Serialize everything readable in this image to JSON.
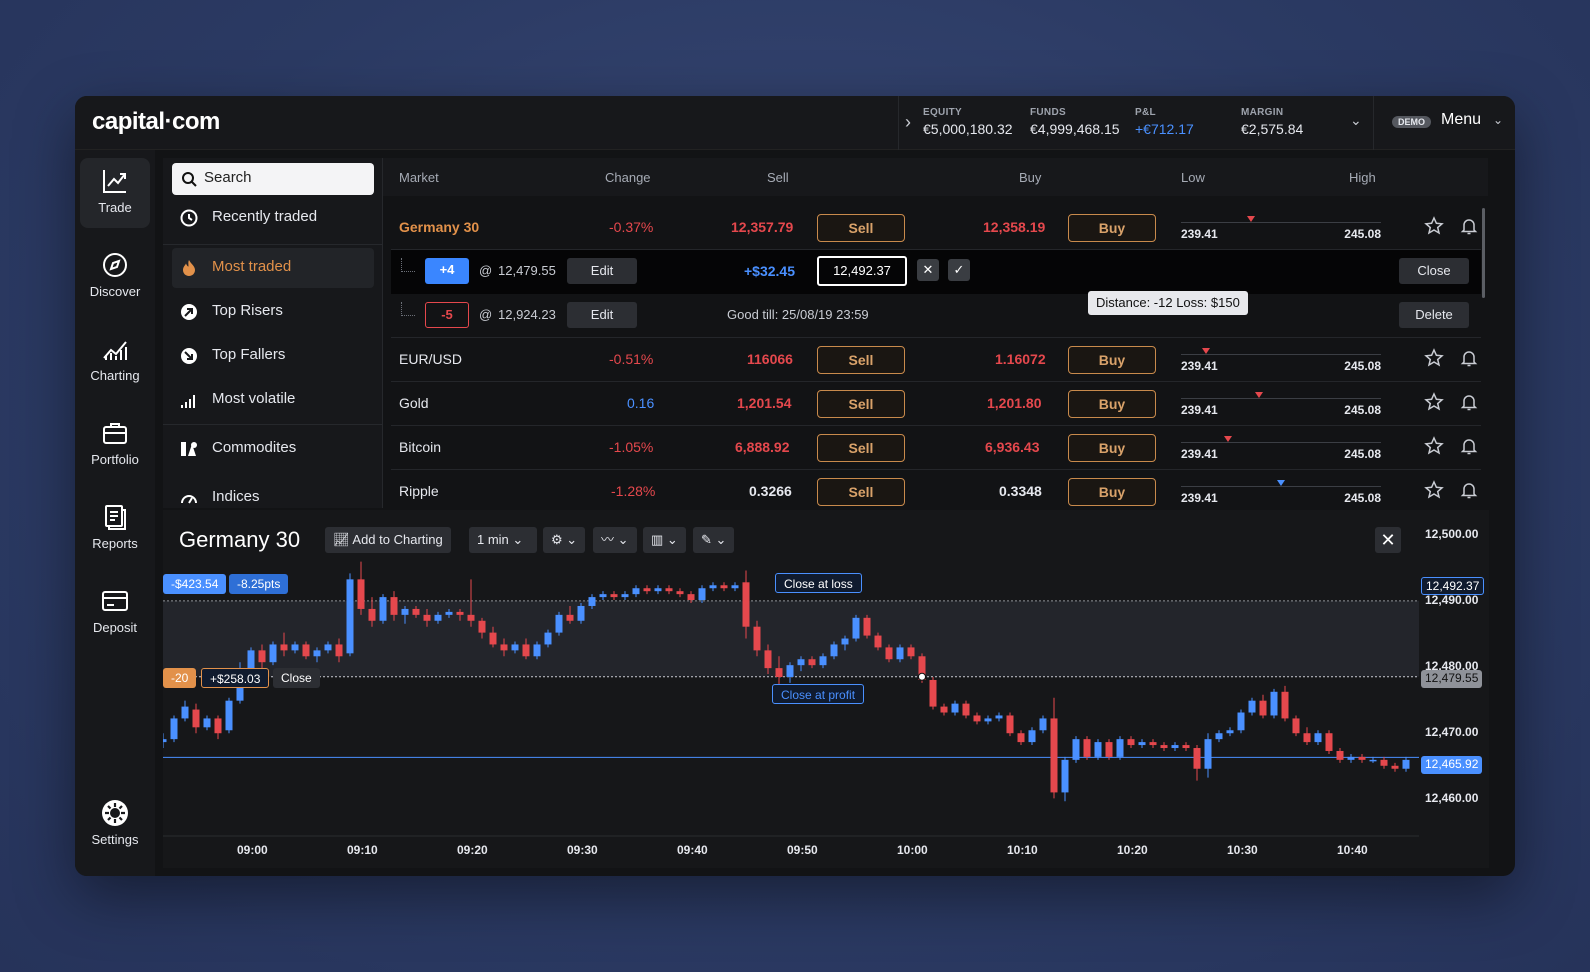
{
  "brand": {
    "logo": "capital·com"
  },
  "account": {
    "equity_label": "EQUITY",
    "equity": "€5,000,180.32",
    "funds_label": "FUNDS",
    "funds": "€4,999,468.15",
    "pnl_label": "P&L",
    "pnl": "+€712.17",
    "margin_label": "MARGIN",
    "margin": "€2,575.84",
    "demo": "DEMO",
    "menu": "Menu"
  },
  "rail": {
    "trade": "Trade",
    "discover": "Discover",
    "charting": "Charting",
    "portfolio": "Portfolio",
    "reports": "Reports",
    "deposit": "Deposit",
    "settings": "Settings"
  },
  "sidebar": {
    "search_placeholder": "Search",
    "recently": "Recently traded",
    "most_traded": "Most traded",
    "risers": "Top Risers",
    "fallers": "Top Fallers",
    "volatile": "Most volatile",
    "commodities": "Commodites",
    "indices": "Indices"
  },
  "table": {
    "headers": {
      "market": "Market",
      "change": "Change",
      "sell": "Sell",
      "buy": "Buy",
      "low": "Low",
      "high": "High"
    },
    "rows": [
      {
        "name": "Germany 30",
        "change": "-0.37%",
        "sell": "12,357.79",
        "buy": "12,358.19",
        "low": "239.41",
        "high": "245.08",
        "sell_btn": "Sell",
        "buy_btn": "Buy"
      },
      {
        "name": "EUR/USD",
        "change": "-0.51%",
        "sell": "116066",
        "buy": "1.16072",
        "low": "239.41",
        "high": "245.08",
        "sell_btn": "Sell",
        "buy_btn": "Buy"
      },
      {
        "name": "Gold",
        "change": "0.16",
        "sell": "1,201.54",
        "buy": "1,201.80",
        "low": "239.41",
        "high": "245.08",
        "sell_btn": "Sell",
        "buy_btn": "Buy"
      },
      {
        "name": "Bitcoin",
        "change": "-1.05%",
        "sell": "6,888.92",
        "buy": "6,936.43",
        "low": "239.41",
        "high": "245.08",
        "sell_btn": "Sell",
        "buy_btn": "Buy"
      },
      {
        "name": "Ripple",
        "change": "-1.28%",
        "sell": "0.3266",
        "buy": "0.3348",
        "low": "239.41",
        "high": "245.08",
        "sell_btn": "Sell",
        "buy_btn": "Buy"
      }
    ],
    "position1": {
      "qty": "+4",
      "at": "@",
      "price": "12,479.55",
      "edit": "Edit",
      "pnl": "+$32.45",
      "stop_value": "12,492.37",
      "cancel": "✕",
      "confirm": "✓",
      "close": "Close"
    },
    "position2": {
      "qty": "-5",
      "at": "@",
      "price": "12,924.23",
      "edit": "Edit",
      "good_till": "Good till: 25/08/19 23:59",
      "delete": "Delete"
    },
    "tooltip": "Distance: -12   Loss: $150"
  },
  "chart": {
    "title": "Germany 30",
    "add_to_charting": "Add to Charting",
    "interval": "1 min",
    "close_icon": "✕",
    "y_labels": [
      "12,500.00",
      "12,490.00",
      "12,480.00",
      "12,470.00",
      "12,460.00"
    ],
    "x_labels": [
      "09:00",
      "09:10",
      "09:20",
      "09:30",
      "09:40",
      "09:50",
      "10:00",
      "10:10",
      "10:20",
      "10:30",
      "10:40"
    ],
    "price_tags": {
      "stop": "12,492.37",
      "entry": "12,479.55",
      "current": "12,465.92"
    },
    "stop_line": {
      "amount": "-$423.54",
      "pts": "-8.25pts",
      "label": "Close at loss"
    },
    "entry_line": {
      "qty": "-20",
      "pnl": "+$258.03",
      "close": "Close",
      "profit_label": "Close at profit"
    }
  },
  "colors": {
    "up": "#4a90ff",
    "down": "#e5484d",
    "accent": "#e2914a"
  },
  "chart_data": {
    "type": "candlestick",
    "title": "Germany 30",
    "x_ticks": [
      "09:00",
      "09:10",
      "09:20",
      "09:30",
      "09:40",
      "09:50",
      "10:00",
      "10:10",
      "10:20",
      "10:30",
      "10:40"
    ],
    "ylim": [
      12455,
      12504
    ],
    "candles": [
      [
        "08:55",
        12468.5,
        12470.0,
        12467.5,
        12469.0
      ],
      [
        "08:56",
        12469.0,
        12473.0,
        12468.5,
        12472.5
      ],
      [
        "08:57",
        12472.5,
        12475.5,
        12472.0,
        12474.5
      ],
      [
        "08:58",
        12474.0,
        12475.0,
        12470.0,
        12471.0
      ],
      [
        "08:59",
        12471.0,
        12473.0,
        12470.5,
        12472.5
      ],
      [
        "09:00",
        12472.5,
        12473.0,
        12469.0,
        12470.0
      ],
      [
        "09:01",
        12470.5,
        12476.0,
        12470.0,
        12475.5
      ],
      [
        "09:02",
        12475.5,
        12482.0,
        12475.0,
        12481.0
      ],
      [
        "09:03",
        12481.0,
        12484.5,
        12480.0,
        12484.0
      ],
      [
        "09:04",
        12484.0,
        12485.0,
        12481.0,
        12482.0
      ],
      [
        "09:05",
        12482.0,
        12485.5,
        12481.5,
        12485.0
      ],
      [
        "09:06",
        12485.0,
        12487.0,
        12483.0,
        12484.0
      ],
      [
        "09:07",
        12484.0,
        12485.5,
        12483.5,
        12485.0
      ],
      [
        "09:08",
        12485.0,
        12485.5,
        12482.5,
        12483.0
      ],
      [
        "09:09",
        12483.0,
        12484.5,
        12482.0,
        12484.0
      ],
      [
        "09:10",
        12484.0,
        12485.5,
        12483.5,
        12485.0
      ],
      [
        "09:11",
        12485.0,
        12486.0,
        12482.0,
        12483.0
      ],
      [
        "09:12",
        12483.5,
        12497.0,
        12483.0,
        12496.0
      ],
      [
        "09:13",
        12496.0,
        12499.0,
        12490.0,
        12491.0
      ],
      [
        "09:14",
        12491.0,
        12493.0,
        12488.0,
        12489.0
      ],
      [
        "09:15",
        12489.0,
        12493.5,
        12488.5,
        12493.0
      ],
      [
        "09:16",
        12493.0,
        12494.0,
        12489.0,
        12490.0
      ],
      [
        "09:17",
        12490.0,
        12491.5,
        12488.5,
        12491.0
      ],
      [
        "09:18",
        12491.0,
        12491.5,
        12489.5,
        12490.0
      ],
      [
        "09:19",
        12490.0,
        12491.0,
        12488.0,
        12489.0
      ],
      [
        "09:20",
        12489.0,
        12490.5,
        12488.5,
        12490.0
      ],
      [
        "09:21",
        12490.0,
        12491.0,
        12489.5,
        12490.5
      ],
      [
        "09:22",
        12490.5,
        12491.0,
        12489.0,
        12490.0
      ],
      [
        "09:23",
        12490.0,
        12496.0,
        12488.0,
        12489.0
      ],
      [
        "09:24",
        12489.0,
        12489.5,
        12486.0,
        12487.0
      ],
      [
        "09:25",
        12487.0,
        12488.0,
        12484.5,
        12485.0
      ],
      [
        "09:26",
        12485.0,
        12486.0,
        12483.0,
        12484.0
      ],
      [
        "09:27",
        12484.0,
        12485.5,
        12483.5,
        12485.0
      ],
      [
        "09:28",
        12485.0,
        12486.0,
        12482.5,
        12483.0
      ],
      [
        "09:29",
        12483.0,
        12485.5,
        12482.5,
        12485.0
      ],
      [
        "09:30",
        12485.0,
        12487.5,
        12484.5,
        12487.0
      ],
      [
        "09:31",
        12487.0,
        12490.5,
        12486.5,
        12490.0
      ],
      [
        "09:32",
        12490.0,
        12491.5,
        12488.5,
        12489.0
      ],
      [
        "09:33",
        12489.0,
        12492.0,
        12488.5,
        12491.5
      ],
      [
        "09:34",
        12491.5,
        12493.5,
        12491.0,
        12493.0
      ],
      [
        "09:35",
        12493.0,
        12494.0,
        12492.5,
        12493.5
      ],
      [
        "09:36",
        12493.5,
        12494.0,
        12492.5,
        12493.0
      ],
      [
        "09:37",
        12493.0,
        12494.0,
        12492.5,
        12493.5
      ],
      [
        "09:38",
        12493.5,
        12495.0,
        12493.0,
        12494.5
      ],
      [
        "09:39",
        12494.5,
        12495.0,
        12493.5,
        12494.0
      ],
      [
        "09:40",
        12494.0,
        12495.0,
        12493.5,
        12494.5
      ],
      [
        "09:41",
        12494.5,
        12495.0,
        12493.5,
        12494.0
      ],
      [
        "09:42",
        12494.0,
        12494.5,
        12493.0,
        12493.5
      ],
      [
        "09:43",
        12493.5,
        12494.0,
        12492.0,
        12492.5
      ],
      [
        "09:44",
        12492.5,
        12495.0,
        12492.0,
        12494.5
      ],
      [
        "09:45",
        12494.5,
        12495.5,
        12494.0,
        12495.0
      ],
      [
        "09:46",
        12495.0,
        12495.5,
        12494.0,
        12494.5
      ],
      [
        "09:47",
        12494.5,
        12495.5,
        12494.0,
        12495.0
      ],
      [
        "09:48",
        12495.5,
        12497.5,
        12486.0,
        12488.0
      ],
      [
        "09:49",
        12488.0,
        12489.0,
        12483.0,
        12484.0
      ],
      [
        "09:50",
        12484.0,
        12485.0,
        12480.0,
        12481.0
      ],
      [
        "09:51",
        12481.0,
        12483.0,
        12478.0,
        12479.5
      ],
      [
        "09:52",
        12479.5,
        12482.0,
        12478.5,
        12481.5
      ],
      [
        "09:53",
        12481.5,
        12483.0,
        12480.5,
        12482.5
      ],
      [
        "09:54",
        12482.5,
        12483.0,
        12481.0,
        12481.5
      ],
      [
        "09:55",
        12481.5,
        12483.5,
        12481.0,
        12483.0
      ],
      [
        "09:56",
        12483.0,
        12485.5,
        12482.5,
        12485.0
      ],
      [
        "09:57",
        12485.0,
        12486.5,
        12484.0,
        12486.0
      ],
      [
        "09:58",
        12486.0,
        12490.0,
        12485.5,
        12489.5
      ],
      [
        "09:59",
        12489.5,
        12490.0,
        12486.0,
        12486.5
      ],
      [
        "10:00",
        12486.5,
        12487.0,
        12484.0,
        12484.5
      ],
      [
        "10:01",
        12484.5,
        12485.0,
        12482.0,
        12482.5
      ],
      [
        "10:02",
        12482.5,
        12485.0,
        12482.0,
        12484.5
      ],
      [
        "10:03",
        12484.5,
        12485.0,
        12482.5,
        12483.0
      ],
      [
        "10:04",
        12483.0,
        12483.5,
        12478.5,
        12479.0
      ],
      [
        "10:05",
        12479.0,
        12479.5,
        12474.0,
        12474.5
      ],
      [
        "10:06",
        12474.5,
        12475.0,
        12473.0,
        12473.5
      ],
      [
        "10:07",
        12473.5,
        12475.5,
        12473.0,
        12475.0
      ],
      [
        "10:08",
        12475.0,
        12475.5,
        12472.5,
        12473.0
      ],
      [
        "10:09",
        12473.0,
        12473.5,
        12471.5,
        12472.0
      ],
      [
        "10:10",
        12472.0,
        12473.0,
        12471.5,
        12472.5
      ],
      [
        "10:11",
        12472.5,
        12473.5,
        12472.0,
        12473.0
      ],
      [
        "10:12",
        12473.0,
        12473.5,
        12469.5,
        12470.0
      ],
      [
        "10:13",
        12470.0,
        12470.5,
        12468.0,
        12468.5
      ],
      [
        "10:14",
        12468.5,
        12471.0,
        12468.0,
        12470.5
      ],
      [
        "10:15",
        12470.5,
        12473.0,
        12470.0,
        12472.5
      ],
      [
        "10:16",
        12472.5,
        12476.0,
        12459.0,
        12460.0
      ],
      [
        "10:17",
        12460.0,
        12466.0,
        12458.5,
        12465.5
      ],
      [
        "10:18",
        12465.5,
        12469.5,
        12465.0,
        12469.0
      ],
      [
        "10:19",
        12469.0,
        12469.5,
        12465.5,
        12466.0
      ],
      [
        "10:20",
        12466.0,
        12469.0,
        12465.5,
        12468.5
      ],
      [
        "10:21",
        12468.5,
        12469.0,
        12465.5,
        12466.0
      ],
      [
        "10:22",
        12466.0,
        12469.5,
        12465.5,
        12469.0
      ],
      [
        "10:23",
        12469.0,
        12469.5,
        12467.5,
        12468.0
      ],
      [
        "10:24",
        12468.0,
        12469.0,
        12467.5,
        12468.5
      ],
      [
        "10:25",
        12468.5,
        12469.0,
        12467.5,
        12468.0
      ],
      [
        "10:26",
        12468.0,
        12468.5,
        12467.0,
        12467.5
      ],
      [
        "10:27",
        12467.5,
        12468.5,
        12467.0,
        12468.0
      ],
      [
        "10:28",
        12468.0,
        12468.5,
        12467.0,
        12467.5
      ],
      [
        "10:29",
        12467.5,
        12468.0,
        12462.0,
        12464.0
      ],
      [
        "10:30",
        12464.0,
        12470.0,
        12462.5,
        12469.0
      ],
      [
        "10:31",
        12469.0,
        12470.5,
        12468.5,
        12470.0
      ],
      [
        "10:32",
        12470.0,
        12471.0,
        12469.5,
        12470.5
      ],
      [
        "10:33",
        12470.5,
        12474.0,
        12470.0,
        12473.5
      ],
      [
        "10:34",
        12473.5,
        12476.0,
        12473.0,
        12475.5
      ],
      [
        "10:35",
        12475.5,
        12476.5,
        12472.5,
        12473.0
      ],
      [
        "10:36",
        12473.0,
        12477.5,
        12472.5,
        12477.0
      ],
      [
        "10:37",
        12477.0,
        12478.0,
        12472.0,
        12472.5
      ],
      [
        "10:38",
        12472.5,
        12473.0,
        12469.5,
        12470.0
      ],
      [
        "10:39",
        12470.0,
        12471.0,
        12468.0,
        12468.5
      ],
      [
        "10:40",
        12468.5,
        12470.5,
        12468.0,
        12470.0
      ],
      [
        "10:41",
        12470.0,
        12470.5,
        12466.5,
        12467.0
      ],
      [
        "10:42",
        12467.0,
        12467.5,
        12465.0,
        12465.5
      ],
      [
        "10:43",
        12465.5,
        12466.5,
        12465.0,
        12466.0
      ],
      [
        "10:44",
        12466.0,
        12466.5,
        12465.0,
        12465.5
      ],
      [
        "10:45",
        12465.5,
        12466.0,
        12465.0,
        12465.5
      ],
      [
        "10:46",
        12465.5,
        12466.0,
        12464.0,
        12464.5
      ],
      [
        "10:47",
        12464.5,
        12465.0,
        12463.5,
        12464.0
      ],
      [
        "10:48",
        12464.0,
        12466.0,
        12463.5,
        12465.5
      ]
    ],
    "lines": [
      {
        "name": "Close at loss",
        "y": 12492.37
      },
      {
        "name": "Close at profit",
        "y": 12479.55
      },
      {
        "name": "current",
        "y": 12465.92
      }
    ]
  }
}
